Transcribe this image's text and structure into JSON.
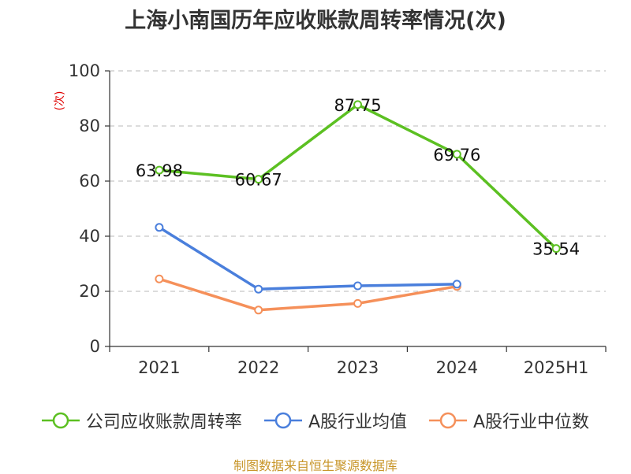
{
  "chart_data": {
    "type": "line",
    "title": "上海小南国历年应收账款周转率情况(次)",
    "ylabel": "(次)",
    "xlabel": "",
    "categories": [
      "2021",
      "2022",
      "2023",
      "2024",
      "2025H1"
    ],
    "ylim": [
      0,
      100
    ],
    "yticks": [
      0,
      20,
      40,
      60,
      80,
      100
    ],
    "grid": true,
    "legend_position": "bottom",
    "series": [
      {
        "name": "公司应收账款周转率",
        "color": "#5cc022",
        "values": [
          63.98,
          60.67,
          87.75,
          69.76,
          35.54
        ],
        "show_labels": true
      },
      {
        "name": "A股行业均值",
        "color": "#4a7fdc",
        "values": [
          43.2,
          20.8,
          22.0,
          22.6,
          null
        ],
        "show_labels": false
      },
      {
        "name": "A股行业中位数",
        "color": "#f5905a",
        "values": [
          24.5,
          13.2,
          15.6,
          21.8,
          null
        ],
        "show_labels": false
      }
    ]
  },
  "source_note": "制图数据来自恒生聚源数据库"
}
